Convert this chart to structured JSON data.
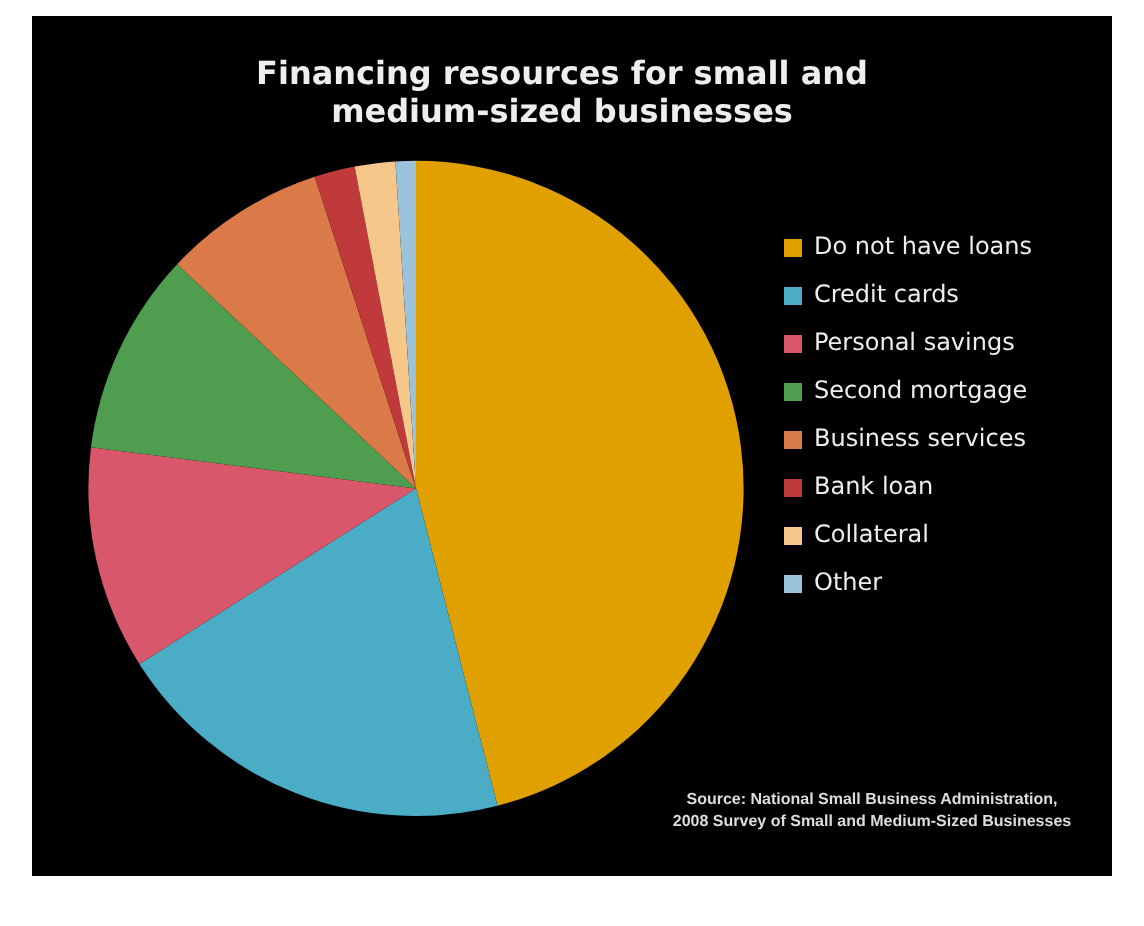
{
  "chart_data": {
    "type": "pie",
    "title": "Financing resources for small and medium-sized businesses",
    "categories": [
      "Do not have loans",
      "Credit cards",
      "Personal savings",
      "Second mortgage",
      "Business services",
      "Bank loan",
      "Collateral",
      "Other"
    ],
    "values": [
      46,
      20,
      11,
      10,
      8,
      2,
      2,
      1
    ],
    "colors": [
      "#e0a000",
      "#4bacc6",
      "#d9576a",
      "#4f9e4f",
      "#d97a48",
      "#c0393b",
      "#f5c78a",
      "#9cc3dc"
    ],
    "legend": "right",
    "annotations": [
      "Source: National Small Business Administration, 2008 Survey of Small and Medium-Sized Businesses"
    ]
  }
}
